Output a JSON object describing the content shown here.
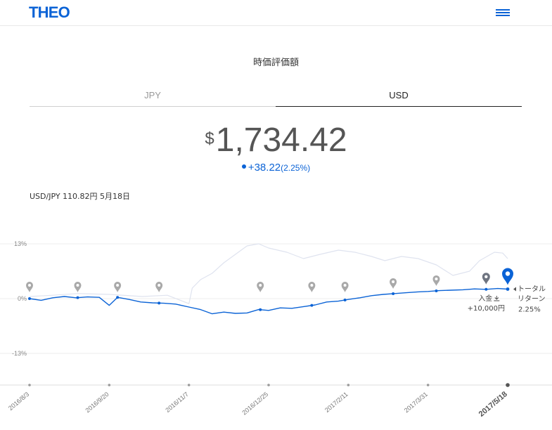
{
  "header": {
    "logo": "THEO",
    "menu_icon": "hamburger-menu-icon",
    "accent_color": "#0b63d6"
  },
  "section_title": "時価評価額",
  "tabs": [
    {
      "label": "JPY",
      "active": false
    },
    {
      "label": "USD",
      "active": true
    }
  ],
  "valuation": {
    "currency_symbol": "$",
    "amount": "1,734.42",
    "change_abs": "+38.22",
    "change_pct": "(2.25%)"
  },
  "fx_note": "USD/JPY 110.82円 5月18日",
  "chart_data": {
    "type": "line",
    "y_ticks": [
      "13%",
      "0%",
      "-13%"
    ],
    "ylim": [
      -13,
      13
    ],
    "x_dates": [
      "2016/8/3",
      "2016/9/20",
      "2016/11/7",
      "2016/12/25",
      "2017/2/11",
      "2017/3/31",
      "2017/5/18"
    ],
    "series": [
      {
        "role": "portfolio",
        "color": "#0b63d6",
        "points": [
          [
            "2016/8/3",
            0.0
          ],
          [
            "2016/8/10",
            -0.4
          ],
          [
            "2016/8/17",
            0.2
          ],
          [
            "2016/8/24",
            0.5
          ],
          [
            "2016/8/31",
            0.2
          ],
          [
            "2016/9/7",
            0.4
          ],
          [
            "2016/9/14",
            0.3
          ],
          [
            "2016/9/20",
            -1.6
          ],
          [
            "2016/9/25",
            0.3
          ],
          [
            "2016/10/2",
            -0.2
          ],
          [
            "2016/10/9",
            -0.8
          ],
          [
            "2016/10/16",
            -1.0
          ],
          [
            "2016/10/23",
            -1.1
          ],
          [
            "2016/10/30",
            -1.3
          ],
          [
            "2016/11/7",
            -2.0
          ],
          [
            "2016/11/14",
            -2.6
          ],
          [
            "2016/11/21",
            -3.6
          ],
          [
            "2016/11/28",
            -3.2
          ],
          [
            "2016/12/5",
            -3.5
          ],
          [
            "2016/12/12",
            -3.4
          ],
          [
            "2016/12/19",
            -2.6
          ],
          [
            "2016/12/25",
            -2.8
          ],
          [
            "2017/1/1",
            -2.2
          ],
          [
            "2017/1/8",
            -2.3
          ],
          [
            "2017/1/15",
            -1.9
          ],
          [
            "2017/1/22",
            -1.5
          ],
          [
            "2017/1/29",
            -0.8
          ],
          [
            "2017/2/5",
            -0.6
          ],
          [
            "2017/2/11",
            -0.2
          ],
          [
            "2017/2/18",
            0.2
          ],
          [
            "2017/2/25",
            0.7
          ],
          [
            "2017/3/4",
            1.0
          ],
          [
            "2017/3/11",
            1.2
          ],
          [
            "2017/3/18",
            1.4
          ],
          [
            "2017/3/25",
            1.6
          ],
          [
            "2017/3/31",
            1.7
          ],
          [
            "2017/4/7",
            1.9
          ],
          [
            "2017/4/14",
            2.0
          ],
          [
            "2017/4/21",
            2.1
          ],
          [
            "2017/4/28",
            2.3
          ],
          [
            "2017/5/5",
            2.2
          ],
          [
            "2017/5/12",
            2.4
          ],
          [
            "2017/5/18",
            2.25
          ]
        ]
      },
      {
        "role": "benchmark",
        "color": "#dfe3ef",
        "points": [
          [
            "2016/8/3",
            0.5
          ],
          [
            "2016/8/17",
            0.8
          ],
          [
            "2016/9/1",
            1.2
          ],
          [
            "2016/9/20",
            1.0
          ],
          [
            "2016/10/10",
            0.5
          ],
          [
            "2016/10/25",
            0.8
          ],
          [
            "2016/11/7",
            -1.2
          ],
          [
            "2016/11/9",
            2.5
          ],
          [
            "2016/11/14",
            4.5
          ],
          [
            "2016/11/21",
            6.0
          ],
          [
            "2016/11/28",
            8.5
          ],
          [
            "2016/12/5",
            10.5
          ],
          [
            "2016/12/12",
            12.5
          ],
          [
            "2016/12/19",
            13.0
          ],
          [
            "2016/12/25",
            12.0
          ],
          [
            "2017/1/5",
            11.0
          ],
          [
            "2017/1/15",
            9.5
          ],
          [
            "2017/1/25",
            10.5
          ],
          [
            "2017/2/5",
            11.5
          ],
          [
            "2017/2/15",
            11.0
          ],
          [
            "2017/2/25",
            10.0
          ],
          [
            "2017/3/5",
            9.0
          ],
          [
            "2017/3/15",
            10.0
          ],
          [
            "2017/3/25",
            9.5
          ],
          [
            "2017/4/5",
            8.0
          ],
          [
            "2017/4/15",
            5.5
          ],
          [
            "2017/4/25",
            6.5
          ],
          [
            "2017/5/1",
            9.0
          ],
          [
            "2017/5/10",
            11.0
          ],
          [
            "2017/5/15",
            10.8
          ],
          [
            "2017/5/18",
            9.5
          ]
        ]
      }
    ],
    "markers": [
      {
        "date": "2016/8/3",
        "type": "deposit-past"
      },
      {
        "date": "2016/9/1",
        "type": "deposit-past"
      },
      {
        "date": "2016/9/25",
        "type": "deposit-past"
      },
      {
        "date": "2016/10/20",
        "type": "deposit-past"
      },
      {
        "date": "2016/12/20",
        "type": "deposit-past"
      },
      {
        "date": "2017/1/20",
        "type": "deposit-past"
      },
      {
        "date": "2017/2/9",
        "type": "deposit-past"
      },
      {
        "date": "2017/3/10",
        "type": "deposit-past"
      },
      {
        "date": "2017/4/5",
        "type": "deposit-past"
      },
      {
        "date": "2017/5/5",
        "type": "deposit-latest"
      },
      {
        "date": "2017/5/18",
        "type": "current"
      }
    ],
    "annotations": {
      "deposit_label": "入金",
      "deposit_amount": "+10,000円",
      "total_return_line1": "トータル",
      "total_return_line2": "リターン",
      "total_return_value": "2.25%"
    },
    "grid": true
  }
}
